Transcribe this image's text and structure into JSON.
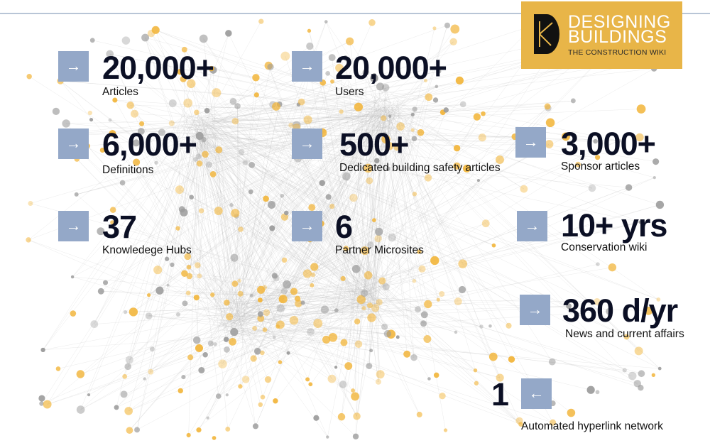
{
  "logo": {
    "line1": "DESIGNING",
    "line2": "BUILDINGS",
    "tagline": "THE CONSTRUCTION WIKI",
    "color": "#e8b548"
  },
  "arrow_color": "#94a8c8",
  "stats": [
    {
      "id": "articles",
      "value": "20,000+",
      "label": "Articles",
      "arrow": "→"
    },
    {
      "id": "users",
      "value": "20,000+",
      "label": "Users",
      "arrow": "→"
    },
    {
      "id": "definitions",
      "value": "6,000+",
      "label": "Definitions",
      "arrow": "→"
    },
    {
      "id": "safety",
      "value": "500+",
      "label": "Dedicated building safety articles",
      "arrow": "→"
    },
    {
      "id": "sponsor",
      "value": "3,000+",
      "label": "Sponsor articles",
      "arrow": "→"
    },
    {
      "id": "hubs",
      "value": "37",
      "label": "Knowledege Hubs",
      "arrow": "→"
    },
    {
      "id": "microsites",
      "value": "6",
      "label": "Partner Microsites",
      "arrow": "→"
    },
    {
      "id": "conservation",
      "value": "10+ yrs",
      "label": "Conservation wiki",
      "arrow": "→"
    },
    {
      "id": "news",
      "value": "360 d/yr",
      "label": "News and current affairs",
      "arrow": "→"
    },
    {
      "id": "network",
      "value": "1",
      "label": "Automated hyperlink network",
      "arrow": "←"
    }
  ]
}
